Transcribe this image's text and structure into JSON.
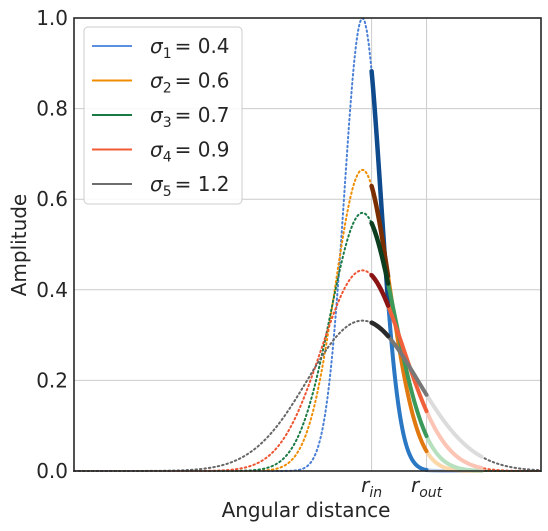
{
  "chart_data": {
    "type": "line",
    "title": "",
    "xlabel": "Angular distance",
    "ylabel": "Amplitude",
    "xlim": [
      -6.3,
      3.9
    ],
    "ylim": [
      0,
      1
    ],
    "grid": true,
    "legend_position": "top-left",
    "yticks": [
      0.0,
      0.2,
      0.4,
      0.6,
      0.8,
      1.0
    ],
    "ytick_labels": [
      "0.0",
      "0.2",
      "0.4",
      "0.6",
      "0.8",
      "1.0"
    ],
    "xticks": [
      0.2,
      1.4
    ],
    "xtick_labels": [
      {
        "base": "r",
        "sub": "in"
      },
      {
        "base": "r",
        "sub": "out"
      }
    ],
    "r_in": 0.2,
    "r_out": 1.4,
    "series": [
      {
        "label_sym": "σ",
        "label_idx": "1",
        "label_val": "= 0.4",
        "sigma": 0.4,
        "peak": 1.0,
        "legend_color": "#5b8fe0",
        "dot_color": "#4a7fd6",
        "bold_color": "#0e4a8c",
        "bold_color2": "#2a78c4",
        "fade_color": "#c2d4f0"
      },
      {
        "label_sym": "σ",
        "label_idx": "2",
        "label_val": "= 0.6",
        "sigma": 0.6,
        "peak": 0.665,
        "legend_color": "#f08c00",
        "dot_color": "#f08c00",
        "bold_color": "#7a2e00",
        "bold_color2": "#e07a10",
        "fade_color": "#fcd7a8"
      },
      {
        "label_sym": "σ",
        "label_idx": "3",
        "label_val": "= 0.7",
        "sigma": 0.7,
        "peak": 0.57,
        "legend_color": "#1a7a45",
        "dot_color": "#1a7a45",
        "bold_color": "#0b3d1e",
        "bold_color2": "#3b9a5a",
        "fade_color": "#b7e0bf"
      },
      {
        "label_sym": "σ",
        "label_idx": "4",
        "label_val": "= 0.9",
        "sigma": 0.9,
        "peak": 0.443,
        "legend_color": "#f05a35",
        "dot_color": "#ee5533",
        "bold_color": "#8a1414",
        "bold_color2": "#f0603a",
        "fade_color": "#fbc4b4"
      },
      {
        "label_sym": "σ",
        "label_idx": "5",
        "label_val": "= 1.2",
        "sigma": 1.2,
        "peak": 0.332,
        "legend_color": "#6e6e6e",
        "dot_color": "#666666",
        "bold_color": "#2a2a2a",
        "bold_color2": "#777777",
        "fade_color": "#dcdcdc"
      }
    ]
  }
}
